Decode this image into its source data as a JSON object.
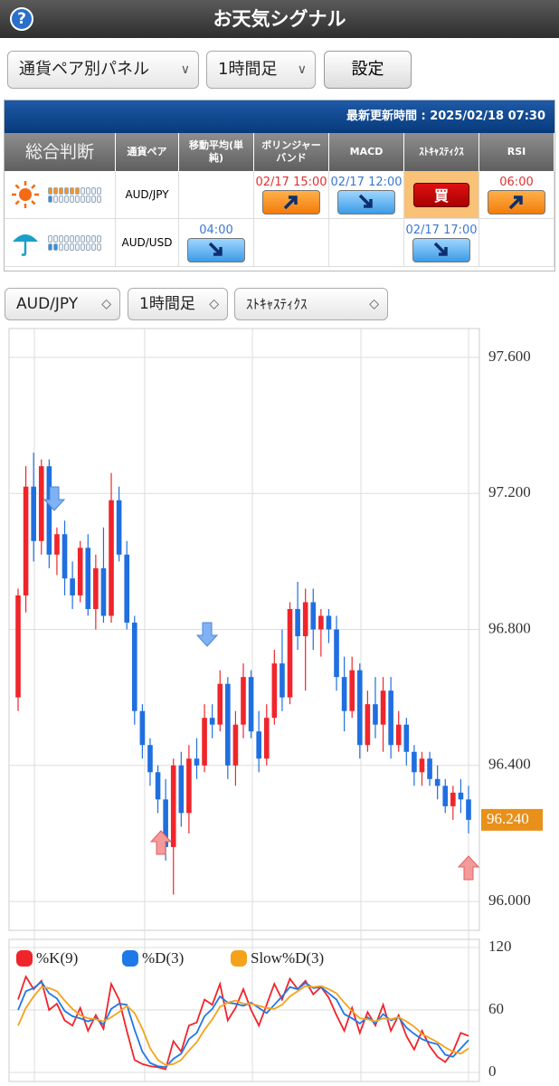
{
  "header": {
    "title": "お天気シグナル",
    "help": "?"
  },
  "controls": {
    "panel_select": "通貨ペア別パネル",
    "timeframe_select": "1時間足",
    "settings_button": "設定"
  },
  "signal_table": {
    "updated": "最新更新時間 : 2025/02/18 07:30",
    "columns": [
      "総合判断",
      "通貨ペア",
      "移動平均(単純)",
      "ボリンジャーバンド",
      "MACD",
      "ｽﾄｷｬｽﾃｨｸｽ",
      "RSI"
    ],
    "rows": [
      {
        "weather": "sunny",
        "buy_strength": 6,
        "sell_strength": 1,
        "pair": "AUD/JPY",
        "cells": [
          null,
          {
            "time": "02/17 15:00",
            "signal": "up"
          },
          {
            "time": "02/17 12:00",
            "signal": "down"
          },
          {
            "label": "買"
          },
          {
            "time": "06:00",
            "signal": "up"
          }
        ]
      },
      {
        "weather": "rain",
        "buy_strength": 0,
        "sell_strength": 2,
        "pair": "AUD/USD",
        "cells": [
          {
            "time": "04:00",
            "signal": "down"
          },
          null,
          null,
          {
            "time": "02/17 17:00",
            "signal": "down"
          },
          null
        ]
      }
    ]
  },
  "chart_controls": {
    "pair_select": "AUD/JPY",
    "timeframe_select": "1時間足",
    "indicator_select": "ｽﾄｷｬｽﾃｨｸｽ"
  },
  "chart_data": [
    {
      "type": "candlestick",
      "up_color": "#f0252b",
      "down_color": "#1f6fe0",
      "open": [
        96.6,
        96.9,
        97.22,
        97.06,
        97.28,
        97.02,
        97.08,
        96.95,
        96.9,
        97.04,
        96.86,
        96.98,
        96.84,
        97.18,
        97.02,
        96.82,
        96.56,
        96.46,
        96.38,
        96.3,
        96.16,
        96.4,
        96.26,
        96.42,
        96.4,
        96.54,
        96.52,
        96.64,
        96.4,
        96.52,
        96.66,
        96.5,
        96.42,
        96.54,
        96.7,
        96.6,
        96.86,
        96.78,
        96.88,
        96.8,
        96.84,
        96.8,
        96.66,
        96.56,
        96.68,
        96.46,
        96.58,
        96.52,
        96.62,
        96.46,
        96.52,
        96.44,
        96.38,
        96.42,
        96.36,
        96.34,
        96.28,
        96.32,
        96.3
      ],
      "high": [
        96.92,
        97.28,
        97.32,
        97.3,
        97.3,
        97.1,
        97.12,
        97.0,
        97.06,
        97.08,
        97.02,
        97.1,
        97.26,
        97.22,
        97.06,
        96.84,
        96.58,
        96.48,
        96.4,
        96.36,
        96.42,
        96.44,
        96.46,
        96.48,
        96.58,
        96.58,
        96.68,
        96.66,
        96.56,
        96.7,
        96.68,
        96.56,
        96.58,
        96.74,
        96.8,
        96.88,
        96.94,
        96.92,
        96.92,
        96.86,
        96.86,
        96.84,
        96.72,
        96.72,
        96.7,
        96.62,
        96.66,
        96.66,
        96.66,
        96.56,
        96.54,
        96.46,
        96.44,
        96.44,
        96.4,
        96.36,
        96.34,
        96.36,
        96.34
      ],
      "low": [
        96.56,
        96.85,
        97.0,
        97.02,
        96.98,
        96.96,
        96.9,
        96.86,
        96.88,
        96.84,
        96.8,
        96.82,
        96.82,
        97.0,
        96.8,
        96.52,
        96.42,
        96.34,
        96.26,
        96.12,
        96.02,
        96.22,
        96.2,
        96.36,
        96.38,
        96.48,
        96.5,
        96.36,
        96.34,
        96.48,
        96.48,
        96.38,
        96.4,
        96.52,
        96.56,
        96.58,
        96.74,
        96.62,
        96.74,
        96.72,
        96.76,
        96.62,
        96.5,
        96.54,
        96.42,
        96.44,
        96.48,
        96.44,
        96.42,
        96.44,
        96.4,
        96.34,
        96.34,
        96.34,
        96.3,
        96.26,
        96.24,
        96.26,
        96.2
      ],
      "close": [
        96.9,
        97.22,
        97.06,
        97.28,
        97.02,
        97.08,
        96.95,
        96.9,
        97.04,
        96.86,
        96.98,
        96.84,
        97.18,
        97.02,
        96.82,
        96.56,
        96.46,
        96.38,
        96.3,
        96.16,
        96.4,
        96.26,
        96.42,
        96.4,
        96.54,
        96.52,
        96.64,
        96.4,
        96.52,
        96.66,
        96.5,
        96.42,
        96.54,
        96.7,
        96.6,
        96.86,
        96.78,
        96.88,
        96.8,
        96.84,
        96.8,
        96.66,
        96.56,
        96.68,
        96.46,
        96.58,
        96.52,
        96.62,
        96.46,
        96.52,
        96.44,
        96.38,
        96.42,
        96.36,
        96.34,
        96.28,
        96.32,
        96.3,
        96.24
      ],
      "ylim": [
        95.915,
        97.685
      ],
      "yticks": [
        {
          "value": 96.0,
          "label": "96.000"
        },
        {
          "value": 96.4,
          "label": "96.400"
        },
        {
          "value": 96.8,
          "label": "96.800"
        },
        {
          "value": 97.2,
          "label": "97.200"
        },
        {
          "value": 97.6,
          "label": "97.600"
        }
      ],
      "current_price": 96.24,
      "current_price_label": "96.240",
      "current_price_color": "#e8901a"
    },
    {
      "type": "line",
      "ylim": [
        -8.7,
        127.8
      ],
      "yticks": [
        0,
        60,
        120
      ],
      "series": [
        {
          "name": "%K(9)",
          "color": "#f0252b",
          "values": [
            70,
            92,
            80,
            88,
            60,
            66,
            50,
            45,
            62,
            40,
            55,
            42,
            85,
            70,
            40,
            12,
            8,
            6,
            5,
            3,
            30,
            20,
            45,
            48,
            70,
            65,
            85,
            50,
            62,
            80,
            60,
            45,
            65,
            85,
            70,
            90,
            80,
            88,
            75,
            82,
            72,
            55,
            40,
            62,
            38,
            58,
            45,
            65,
            40,
            55,
            35,
            22,
            40,
            25,
            15,
            10,
            20,
            38,
            35
          ]
        },
        {
          "name": "%D(3)",
          "color": "#1f78e8",
          "values": [
            60,
            78,
            81,
            87,
            76,
            71,
            59,
            54,
            52,
            49,
            52,
            46,
            61,
            66,
            65,
            41,
            20,
            9,
            6,
            5,
            13,
            18,
            32,
            38,
            54,
            61,
            73,
            67,
            66,
            64,
            67,
            62,
            57,
            65,
            73,
            82,
            80,
            86,
            81,
            82,
            76,
            70,
            56,
            52,
            47,
            53,
            47,
            56,
            50,
            53,
            43,
            37,
            32,
            29,
            27,
            17,
            15,
            23,
            31
          ]
        },
        {
          "name": "Slow%D(3)",
          "color": "#f5a21b",
          "values": [
            45,
            62,
            73,
            82,
            81,
            78,
            69,
            61,
            55,
            52,
            51,
            49,
            53,
            58,
            64,
            57,
            42,
            23,
            12,
            7,
            8,
            12,
            21,
            29,
            41,
            51,
            63,
            67,
            69,
            66,
            66,
            64,
            62,
            61,
            65,
            73,
            78,
            83,
            82,
            83,
            80,
            76,
            67,
            59,
            52,
            51,
            49,
            52,
            51,
            53,
            49,
            44,
            37,
            33,
            29,
            24,
            20,
            18,
            23
          ]
        }
      ]
    }
  ]
}
